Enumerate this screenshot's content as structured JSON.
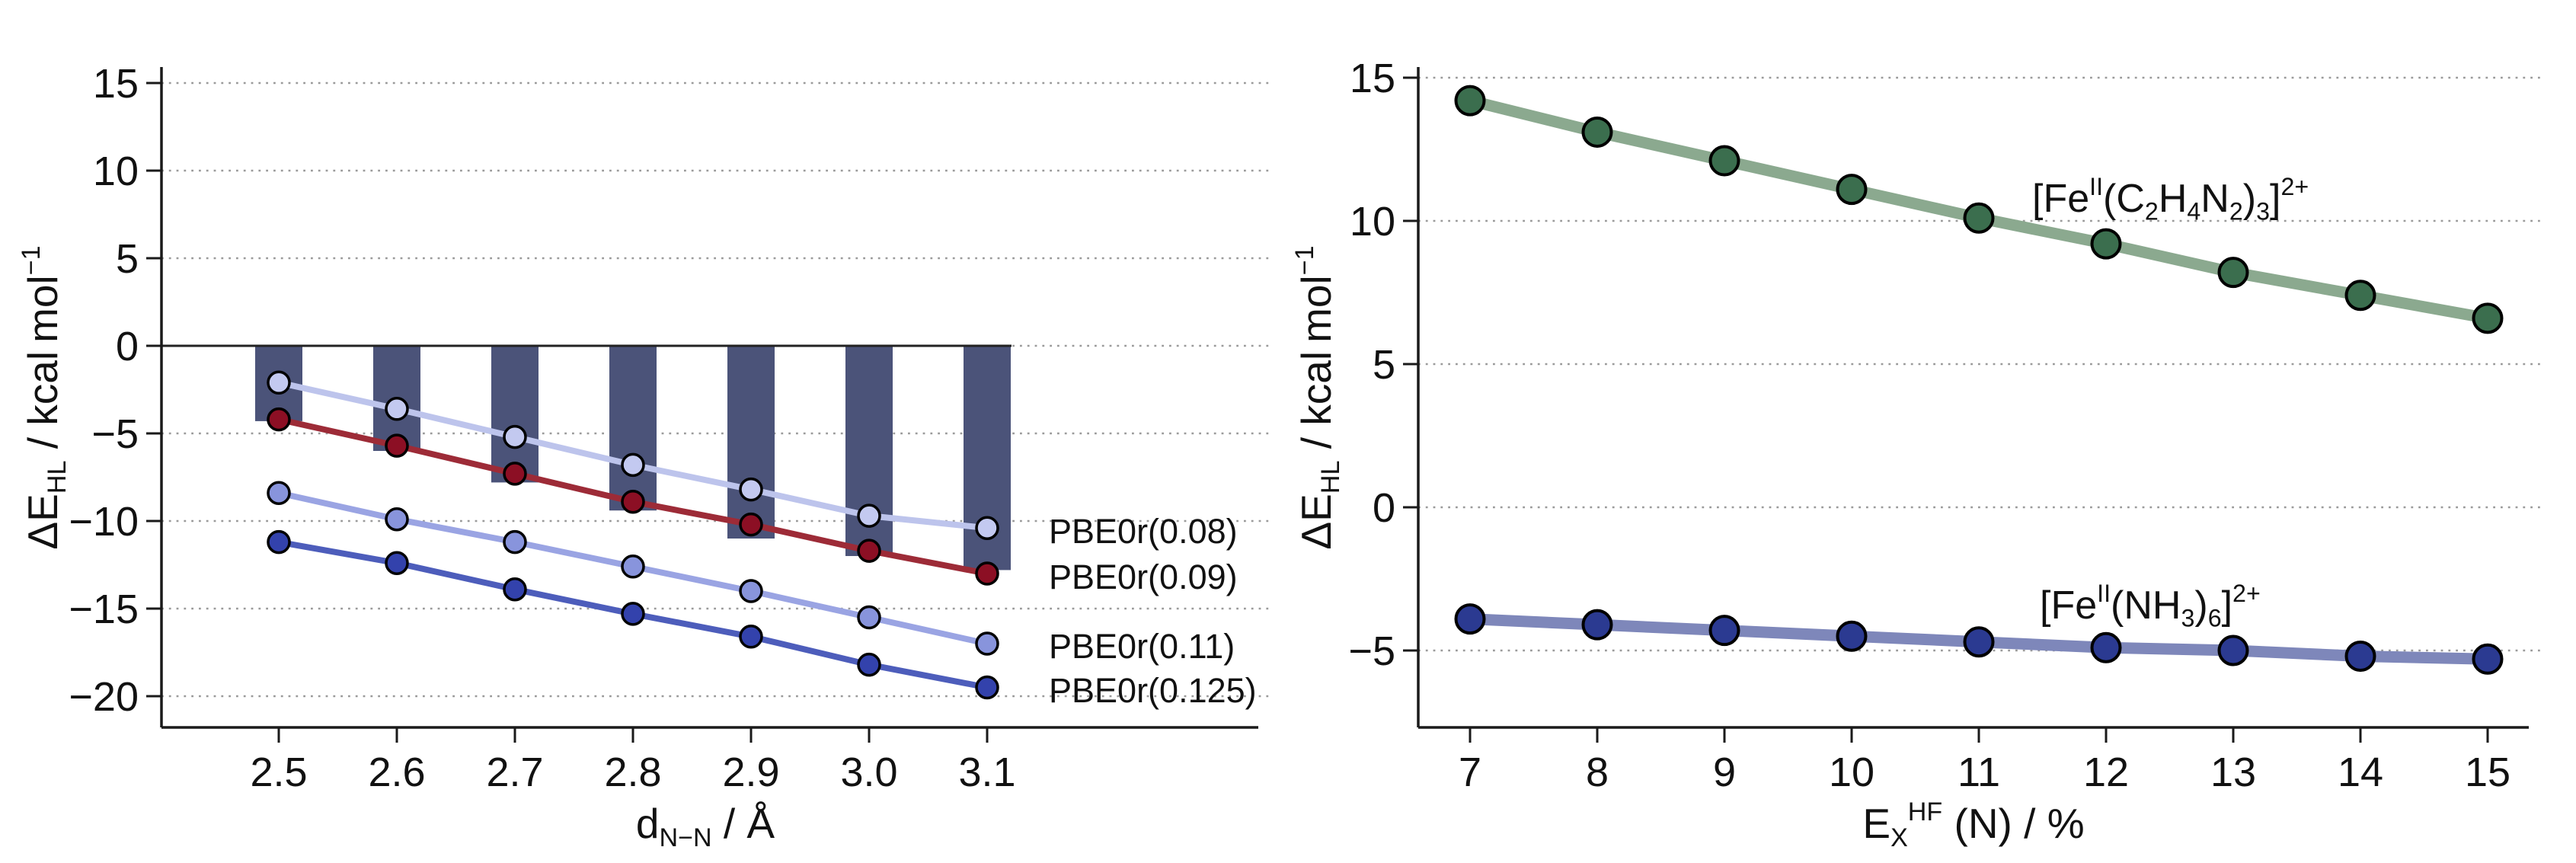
{
  "page": {
    "background": "#ffffff"
  },
  "chart_data": [
    {
      "id": "left",
      "type": "bar+line",
      "title": "",
      "xlabel_rich": [
        {
          "t": "d"
        },
        {
          "t": "N−N",
          "s": "sub"
        },
        {
          "t": " / Å"
        }
      ],
      "ylabel_rich": [
        {
          "t": "ΔE"
        },
        {
          "t": "HL",
          "s": "sub"
        },
        {
          "t": " / kcal mol"
        },
        {
          "t": "−1",
          "s": "sup"
        }
      ],
      "x_values": [
        2.5,
        2.6,
        2.7,
        2.8,
        2.9,
        3.0,
        3.1
      ],
      "x_tick_labels": [
        "2.5",
        "2.6",
        "2.7",
        "2.8",
        "2.9",
        "3.0",
        "3.1"
      ],
      "y_ticks": [
        15,
        10,
        5,
        0,
        -5,
        -10,
        -15,
        -20
      ],
      "ylim": [
        -22.8,
        16.5
      ],
      "grid": "horizontal-dotted",
      "zero_line": true,
      "bars": {
        "name": "reference-bars",
        "color": "#4b5379",
        "values": [
          -4.3,
          -6.0,
          -7.8,
          -9.4,
          -11.0,
          -12.0,
          -12.8
        ]
      },
      "series": [
        {
          "name": "PBE0r(0.08)",
          "values": [
            -2.1,
            -3.6,
            -5.2,
            -6.8,
            -8.2,
            -9.7,
            -10.4
          ],
          "line_color": "#bdc4ec",
          "marker_color": "#c3c9f0",
          "label_color": "#b2bbe9",
          "label_rich": [
            {
              "t": "PBE0r(0.08)"
            }
          ]
        },
        {
          "name": "PBE0r(0.09)",
          "values": [
            -4.2,
            -5.7,
            -7.3,
            -8.9,
            -10.2,
            -11.7,
            -13.0
          ],
          "line_color": "#9d2b37",
          "marker_color": "#8c0f24",
          "label_color": "#8e1025",
          "label_rich": [
            {
              "t": "PBE0r(0.09)"
            }
          ]
        },
        {
          "name": "PBE0r(0.11)",
          "values": [
            -8.4,
            -9.9,
            -11.2,
            -12.6,
            -14.0,
            -15.5,
            -17.0
          ],
          "line_color": "#9aa4e3",
          "marker_color": "#8894dc",
          "label_color": "#8c97de",
          "label_rich": [
            {
              "t": "PBE0r(0.11)"
            }
          ]
        },
        {
          "name": "PBE0r(0.125)",
          "values": [
            -11.2,
            -12.4,
            -13.9,
            -15.3,
            -16.6,
            -18.2,
            -19.5
          ],
          "line_color": "#4d5dbb",
          "marker_color": "#3342ac",
          "label_color": "#2f3f9e",
          "label_rich": [
            {
              "t": "PBE0r(0.125)"
            }
          ]
        }
      ]
    },
    {
      "id": "right",
      "type": "line",
      "title": "",
      "xlabel_rich": [
        {
          "t": "E"
        },
        {
          "t": "X",
          "s": "sub"
        },
        {
          "t": "HF",
          "s": "sup"
        },
        {
          "t": " (N) / %"
        }
      ],
      "ylabel_rich": [
        {
          "t": "ΔE"
        },
        {
          "t": "HL",
          "s": "sub"
        },
        {
          "t": " / kcal mol"
        },
        {
          "t": "−1",
          "s": "sup"
        }
      ],
      "x_values": [
        7,
        8,
        9,
        10,
        11,
        12,
        13,
        14,
        15
      ],
      "x_tick_labels": [
        "7",
        "8",
        "9",
        "10",
        "11",
        "12",
        "13",
        "14",
        "15"
      ],
      "y_ticks": [
        15,
        10,
        5,
        0,
        -5
      ],
      "ylim": [
        -7.8,
        16.4
      ],
      "grid": "horizontal-dotted",
      "zero_line": false,
      "series": [
        {
          "name": "[FeII(C2H4N2)3]2+",
          "values": [
            14.2,
            13.1,
            12.1,
            11.1,
            10.1,
            9.2,
            8.2,
            7.4,
            6.6
          ],
          "line_color": "#8ba98f",
          "marker_color": "#3b6e4e",
          "label_color": "#41704f",
          "label_rich": [
            {
              "t": "[Fe"
            },
            {
              "t": "II",
              "s": "sup"
            },
            {
              "t": "(C"
            },
            {
              "t": "2",
              "s": "sub"
            },
            {
              "t": "H"
            },
            {
              "t": "4",
              "s": "sub"
            },
            {
              "t": "N"
            },
            {
              "t": "2",
              "s": "sub"
            },
            {
              "t": ")"
            },
            {
              "t": "3",
              "s": "sub"
            },
            {
              "t": "]"
            },
            {
              "t": "2+",
              "s": "sup"
            }
          ]
        },
        {
          "name": "[FeII(NH3)6]2+",
          "values": [
            -3.9,
            -4.1,
            -4.3,
            -4.5,
            -4.7,
            -4.9,
            -5.0,
            -5.2,
            -5.3
          ],
          "line_color": "#7e87ba",
          "marker_color": "#2b3a91",
          "label_color": "#2e3a8f",
          "label_rich": [
            {
              "t": "[Fe"
            },
            {
              "t": "II",
              "s": "sup"
            },
            {
              "t": "(NH"
            },
            {
              "t": "3",
              "s": "sub"
            },
            {
              "t": ")"
            },
            {
              "t": "6",
              "s": "sub"
            },
            {
              "t": "]"
            },
            {
              "t": "2+",
              "s": "sup"
            }
          ]
        }
      ]
    }
  ]
}
